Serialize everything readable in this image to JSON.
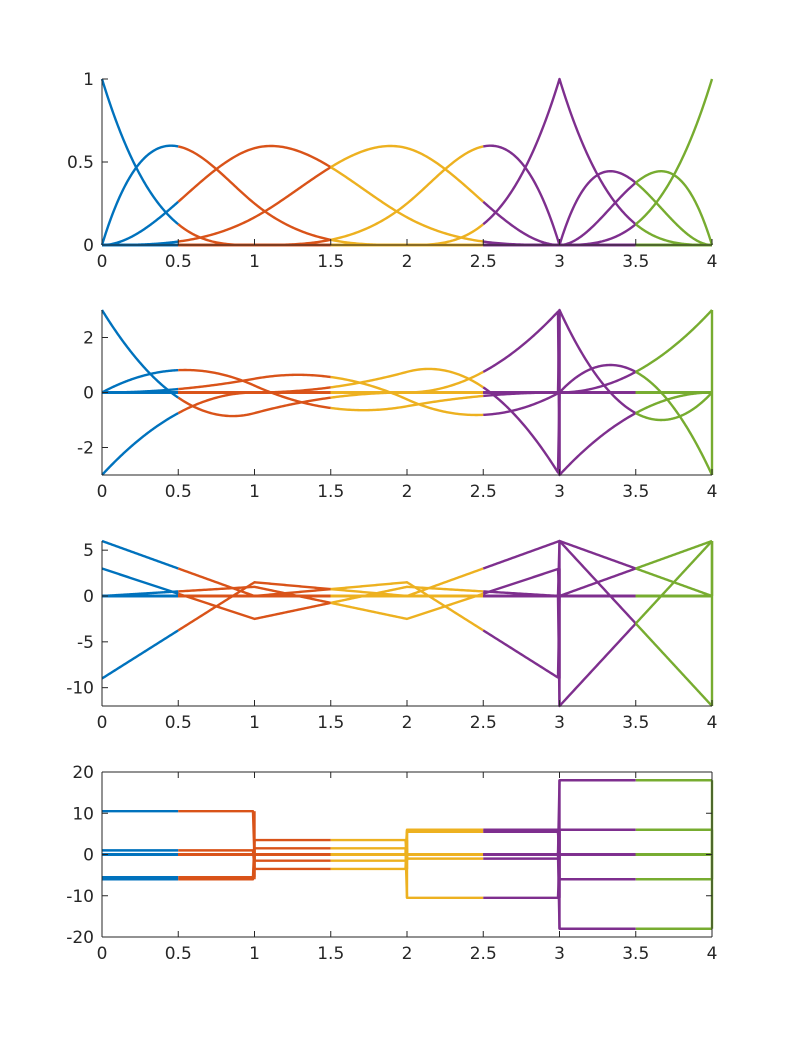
{
  "colors": {
    "segment_0": "#0072BD",
    "segment_1": "#D95319",
    "segment_2": "#EDB120",
    "segment_3": "#7E2F8E",
    "segment_4": "#77AC30",
    "axis": "#262626"
  },
  "chart_data": [
    {
      "type": "line",
      "title": "",
      "xlabel": "",
      "ylabel": "",
      "xlim": [
        0,
        4
      ],
      "ylim": [
        0,
        1
      ],
      "xticks": [
        "0",
        "0.5",
        "1",
        "1.5",
        "2",
        "2.5",
        "3",
        "3.5",
        "4"
      ],
      "yticks": [
        "0",
        "0.5",
        "1"
      ],
      "grid": false,
      "box": false,
      "knots": [
        0,
        0,
        0,
        0,
        1,
        2,
        3,
        3,
        3,
        4,
        4,
        4,
        4
      ],
      "segment_breaks": [
        0,
        0.5,
        1.5,
        2.5,
        3.5,
        4
      ],
      "derivative": 0,
      "series": [
        {
          "values_sampled_at": [
            0,
            0.5,
            1,
            1.5,
            2,
            2.5,
            3,
            3.5,
            4
          ],
          "values": [
            1,
            0.125,
            0,
            0,
            0,
            0,
            0,
            0,
            0
          ]
        },
        {
          "values_sampled_at": [
            0,
            0.5,
            1,
            1.5,
            2,
            2.5,
            3,
            3.5,
            4
          ],
          "values": [
            0,
            0.594,
            0.25,
            0.031,
            0,
            0,
            0,
            0,
            0
          ]
        },
        {
          "values_sampled_at": [
            0,
            0.5,
            1,
            1.5,
            2,
            2.5,
            3,
            3.5,
            4
          ],
          "values": [
            0,
            0.26,
            0.583,
            0.646,
            0.167,
            0.021,
            0,
            0,
            0
          ]
        },
        {
          "values_sampled_at": [
            0,
            0.5,
            1,
            1.5,
            2,
            2.5,
            3,
            3.5,
            4
          ],
          "values": [
            0,
            0.021,
            0.167,
            0.302,
            0.5,
            0.354,
            0,
            0,
            0
          ]
        },
        {
          "values_sampled_at": [
            0,
            0.5,
            1,
            1.5,
            2,
            2.5,
            3,
            3.5,
            4
          ],
          "values": [
            0,
            0,
            0,
            0.021,
            0.333,
            0.625,
            0,
            0,
            0
          ]
        },
        {
          "values_sampled_at": [
            0,
            0.5,
            1,
            1.5,
            2,
            2.5,
            3,
            3.5,
            4
          ],
          "values": [
            0,
            0,
            0,
            0,
            0,
            0,
            1,
            0.125,
            0
          ]
        },
        {
          "values_sampled_at": [
            0,
            0.5,
            1,
            1.5,
            2,
            2.5,
            3,
            3.5,
            4
          ],
          "values": [
            0,
            0,
            0,
            0,
            0,
            0,
            0,
            0.375,
            0
          ]
        },
        {
          "values_sampled_at": [
            0,
            0.5,
            1,
            1.5,
            2,
            2.5,
            3,
            3.5,
            4
          ],
          "values": [
            0,
            0,
            0,
            0,
            0,
            0,
            0,
            0.375,
            0
          ]
        },
        {
          "values_sampled_at": [
            0,
            0.5,
            1,
            1.5,
            2,
            2.5,
            3,
            3.5,
            4
          ],
          "values": [
            0,
            0,
            0,
            0,
            0,
            0,
            0,
            0.125,
            1
          ]
        }
      ]
    },
    {
      "type": "line",
      "title": "",
      "xlabel": "",
      "ylabel": "",
      "xlim": [
        0,
        4
      ],
      "ylim": [
        -3,
        3
      ],
      "xticks": [
        "0",
        "0.5",
        "1",
        "1.5",
        "2",
        "2.5",
        "3",
        "3.5",
        "4"
      ],
      "yticks": [
        "-2",
        "0",
        "2"
      ],
      "grid": false,
      "box": false,
      "knots": [
        0,
        0,
        0,
        0,
        1,
        2,
        3,
        3,
        3,
        4,
        4,
        4,
        4
      ],
      "segment_breaks": [
        0,
        0.5,
        1.5,
        2.5,
        3.5,
        4
      ],
      "derivative": 1
    },
    {
      "type": "line",
      "title": "",
      "xlabel": "",
      "ylabel": "",
      "xlim": [
        0,
        4
      ],
      "ylim": [
        -12,
        6
      ],
      "xticks": [
        "0",
        "0.5",
        "1",
        "1.5",
        "2",
        "2.5",
        "3",
        "3.5",
        "4"
      ],
      "yticks": [
        "-10",
        "-5",
        "0",
        "5"
      ],
      "grid": false,
      "box": false,
      "knots": [
        0,
        0,
        0,
        0,
        1,
        2,
        3,
        3,
        3,
        4,
        4,
        4,
        4
      ],
      "segment_breaks": [
        0,
        0.5,
        1.5,
        2.5,
        3.5,
        4
      ],
      "derivative": 2
    },
    {
      "type": "line",
      "title": "",
      "xlabel": "",
      "ylabel": "",
      "xlim": [
        0,
        4
      ],
      "ylim": [
        -20,
        20
      ],
      "xticks": [
        "0",
        "0.5",
        "1",
        "1.5",
        "2",
        "2.5",
        "3",
        "3.5",
        "4"
      ],
      "yticks": [
        "-20",
        "-10",
        "0",
        "10",
        "20"
      ],
      "grid": false,
      "box": true,
      "knots": [
        0,
        0,
        0,
        0,
        1,
        2,
        3,
        3,
        3,
        4,
        4,
        4,
        4
      ],
      "segment_breaks": [
        0,
        0.5,
        1.5,
        2.5,
        3.5,
        4
      ],
      "derivative": 3
    }
  ]
}
